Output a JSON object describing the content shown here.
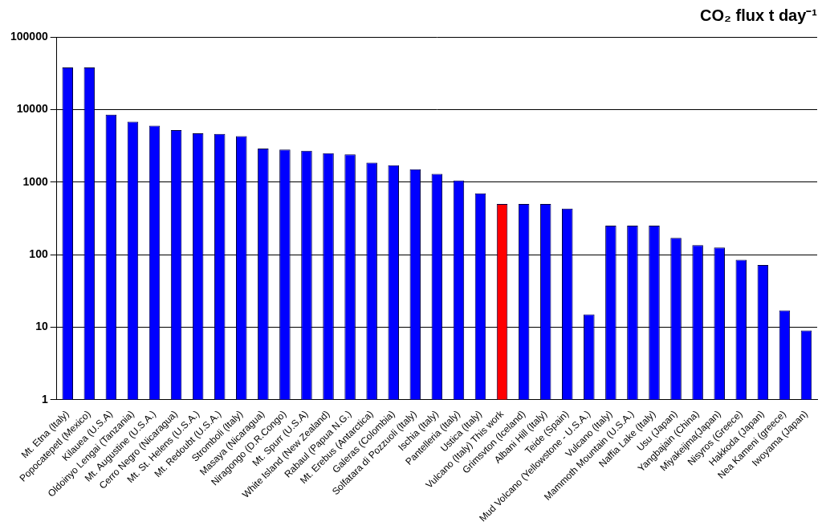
{
  "chart_data": {
    "type": "bar",
    "title": "CO₂ flux t day⁻¹",
    "categories": [
      "Mt. Etna (Italy)",
      "Popocatepetl (Mexico)",
      "Kilauea (U.S.A)",
      "Oldoinyo Lengai (Tanzania)",
      "Mt. Augustine (U.S.A.)",
      "Cerro Negro (Nicaragua)",
      "Mt. St. Helens (U.S.A.)",
      "Mt. Redoubt (U.S.A.)",
      "Stromboli (Italy)",
      "Masaya (Nicaragua)",
      "Niragongo (D.R.Congo)",
      "Mt. Spurr (U.S.A)",
      "White Island (New Zealand)",
      "Rabaul (Papua N.G.)",
      "Mt. Erebus (Antarctica)",
      "Galeras (Colombia)",
      "Solfatara di Pozzuoli (Italy)",
      "Ischia (Italy)",
      "Pantelleria (Italy)",
      "Ustica (Italy)",
      "Vulcano (Italy) This work",
      "Grimsvton (Iceland)",
      "Albani Hill (Italy)",
      "Teide (Spain)",
      "Mud Volcano (Yellowstone - U.S.A.)",
      "Vulcano (Italy)",
      "Mammoth Mountain (U.S.A.)",
      "Naffia Lake (Italy)",
      "Usu (Japan)",
      "Yangbajain (China)",
      "Miyakeijma(Japan)",
      "Nisyros (Greece)",
      "Hakkoda (Japan)",
      "Nea Kameni (greece)",
      "Iwoyama (Japan)"
    ],
    "values": [
      38000,
      38000,
      8500,
      6800,
      6000,
      5200,
      4700,
      4600,
      4300,
      2900,
      2800,
      2700,
      2500,
      2400,
      1850,
      1700,
      1500,
      1300,
      1050,
      700,
      500,
      500,
      500,
      430,
      15,
      250,
      250,
      250,
      170,
      135,
      125,
      85,
      72,
      17,
      9
    ],
    "colors": [
      "#0000ff",
      "#0000ff",
      "#0000ff",
      "#0000ff",
      "#0000ff",
      "#0000ff",
      "#0000ff",
      "#0000ff",
      "#0000ff",
      "#0000ff",
      "#0000ff",
      "#0000ff",
      "#0000ff",
      "#0000ff",
      "#0000ff",
      "#0000ff",
      "#0000ff",
      "#0000ff",
      "#0000ff",
      "#0000ff",
      "#ff0000",
      "#0000ff",
      "#0000ff",
      "#0000ff",
      "#0000ff",
      "#0000ff",
      "#0000ff",
      "#0000ff",
      "#0000ff",
      "#0000ff",
      "#0000ff",
      "#0000ff",
      "#0000ff",
      "#0000ff",
      "#0000ff"
    ],
    "log": "y",
    "ylim": [
      1,
      100000
    ],
    "yticks": [
      1,
      10,
      100,
      1000,
      10000,
      100000
    ],
    "grid": true
  }
}
